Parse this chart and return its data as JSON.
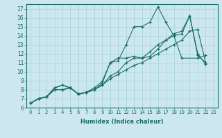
{
  "xlabel": "Humidex (Indice chaleur)",
  "bg_color": "#cce8ee",
  "grid_color": "#aad4dc",
  "line_color": "#1a6b6b",
  "xlim": [
    -0.5,
    23.5
  ],
  "ylim": [
    6,
    17.5
  ],
  "xticks": [
    0,
    1,
    2,
    3,
    4,
    5,
    6,
    7,
    8,
    9,
    10,
    11,
    12,
    13,
    14,
    15,
    16,
    17,
    18,
    19,
    20,
    21,
    22,
    23
  ],
  "yticks": [
    6,
    7,
    8,
    9,
    10,
    11,
    12,
    13,
    14,
    15,
    16,
    17
  ],
  "lines": [
    {
      "x": [
        0,
        1,
        2,
        3,
        4,
        5,
        6,
        7,
        8,
        9,
        10,
        11,
        12,
        13,
        14,
        15,
        16,
        17,
        18,
        19,
        21,
        22
      ],
      "y": [
        6.5,
        7.0,
        7.2,
        8.2,
        8.5,
        8.2,
        7.5,
        7.7,
        8.0,
        8.7,
        11.0,
        11.2,
        13.0,
        15.0,
        15.0,
        15.5,
        17.2,
        15.5,
        14.0,
        11.5,
        11.5,
        11.8
      ]
    },
    {
      "x": [
        0,
        1,
        2,
        3,
        4,
        5,
        6,
        7,
        8,
        9,
        10,
        11,
        12,
        13,
        14,
        15,
        16,
        17,
        18,
        19,
        20,
        21,
        22
      ],
      "y": [
        6.5,
        7.0,
        7.2,
        8.2,
        8.5,
        8.2,
        7.5,
        7.7,
        8.2,
        8.9,
        11.0,
        11.5,
        11.5,
        11.7,
        11.5,
        11.7,
        12.5,
        13.5,
        14.0,
        14.2,
        16.2,
        11.8,
        11.0
      ]
    },
    {
      "x": [
        0,
        1,
        2,
        3,
        4,
        5,
        6,
        7,
        8,
        9,
        10,
        11,
        12,
        13,
        14,
        15,
        16,
        17,
        18,
        19,
        20,
        21,
        22
      ],
      "y": [
        6.5,
        7.0,
        7.2,
        8.0,
        8.0,
        8.2,
        7.5,
        7.7,
        8.0,
        8.5,
        9.5,
        10.0,
        11.0,
        11.5,
        11.5,
        12.2,
        13.0,
        13.5,
        14.2,
        14.5,
        16.2,
        12.0,
        10.8
      ]
    },
    {
      "x": [
        0,
        1,
        2,
        3,
        4,
        5,
        6,
        7,
        8,
        9,
        10,
        11,
        12,
        13,
        14,
        15,
        16,
        17,
        18,
        19,
        20,
        21,
        22
      ],
      "y": [
        6.5,
        7.0,
        7.2,
        8.0,
        8.0,
        8.2,
        7.5,
        7.7,
        8.0,
        8.5,
        9.2,
        9.7,
        10.2,
        10.7,
        11.0,
        11.5,
        12.0,
        12.5,
        13.0,
        13.5,
        14.5,
        14.7,
        11.0
      ]
    }
  ]
}
